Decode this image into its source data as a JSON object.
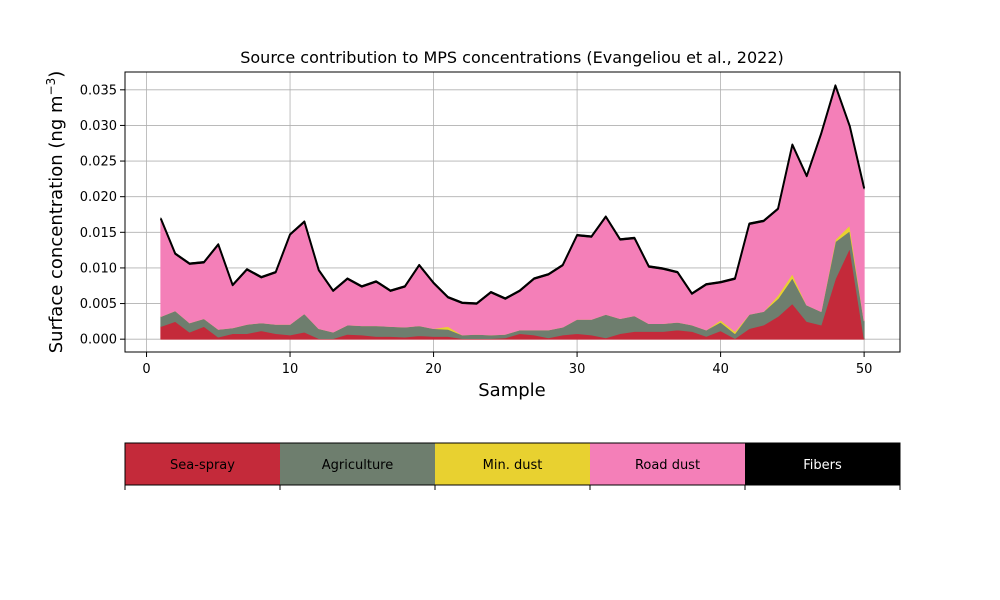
{
  "chart_data": {
    "type": "area",
    "stacked": true,
    "title": "Source contribution to MPS concentrations (Evangeliou et al., 2022)",
    "xlabel": "Sample",
    "ylabel_text": "Surface concentration (ng m",
    "ylabel_exp": "−3",
    "ylabel_close": ")",
    "xlim": [
      -1.5,
      52.5
    ],
    "ylim": [
      -0.0018,
      0.0375
    ],
    "xticks": [
      0,
      10,
      20,
      30,
      40,
      50
    ],
    "xtick_labels": [
      "0",
      "10",
      "20",
      "30",
      "40",
      "50"
    ],
    "yticks": [
      0,
      0.005,
      0.01,
      0.015,
      0.02,
      0.025,
      0.03,
      0.035
    ],
    "ytick_labels": [
      "0.000",
      "0.005",
      "0.010",
      "0.015",
      "0.020",
      "0.025",
      "0.030",
      "0.035"
    ],
    "grid": true,
    "x": [
      1,
      2,
      3,
      4,
      5,
      6,
      7,
      8,
      9,
      10,
      11,
      12,
      13,
      14,
      15,
      16,
      17,
      18,
      19,
      20,
      21,
      22,
      23,
      24,
      25,
      26,
      27,
      28,
      29,
      30,
      31,
      32,
      33,
      34,
      35,
      36,
      37,
      38,
      39,
      40,
      41,
      42,
      43,
      44,
      45,
      46,
      47,
      48,
      49,
      50
    ],
    "series": [
      {
        "name": "Sea-spray",
        "color": "#c42a3a",
        "values": [
          0.0018,
          0.0025,
          0.001,
          0.0018,
          0.0003,
          0.0008,
          0.0008,
          0.0012,
          0.0008,
          0.0006,
          0.001,
          0.0001,
          0.0001,
          0.0007,
          0.0006,
          0.0004,
          0.0004,
          0.0003,
          0.0005,
          0.0004,
          0.0004,
          0.0001,
          0.0001,
          0.0001,
          0.0002,
          0.0008,
          0.0006,
          0.0002,
          0.0006,
          0.0008,
          0.0006,
          0.0002,
          0.0008,
          0.0011,
          0.0011,
          0.0011,
          0.0013,
          0.0011,
          0.0004,
          0.0012,
          0.0001,
          0.0015,
          0.002,
          0.0032,
          0.005,
          0.0025,
          0.002,
          0.0085,
          0.0128,
          0.0001
        ]
      },
      {
        "name": "Agriculture",
        "color": "#6e7e6e",
        "values": [
          0.0014,
          0.0015,
          0.0013,
          0.0011,
          0.0011,
          0.0008,
          0.0013,
          0.0011,
          0.0013,
          0.0015,
          0.0026,
          0.0014,
          0.0009,
          0.0013,
          0.0013,
          0.0015,
          0.0014,
          0.0014,
          0.0014,
          0.0011,
          0.001,
          0.0005,
          0.0006,
          0.0005,
          0.0005,
          0.0005,
          0.0007,
          0.0011,
          0.0011,
          0.002,
          0.0022,
          0.0033,
          0.0021,
          0.0022,
          0.0011,
          0.0011,
          0.0011,
          0.0009,
          0.0009,
          0.0012,
          0.0007,
          0.002,
          0.0019,
          0.0025,
          0.0036,
          0.0023,
          0.0019,
          0.0052,
          0.0024,
          0.0025
        ]
      },
      {
        "name": "Min. dust",
        "color": "#e8d130",
        "values": [
          0,
          0,
          0,
          0,
          0,
          0,
          0,
          0,
          0,
          0,
          0,
          0,
          0,
          0,
          0,
          0,
          0,
          0,
          0,
          0,
          0.0004,
          0,
          0,
          0,
          0,
          0,
          0,
          0,
          0,
          0,
          0,
          0,
          0,
          0,
          0,
          0,
          0,
          0,
          0,
          0.0003,
          0.0003,
          0,
          0,
          0.0005,
          0.0006,
          0,
          0,
          0.0003,
          0.0008,
          0
        ]
      },
      {
        "name": "Road dust",
        "color": "#f47fb8",
        "values": [
          0.0136,
          0.0079,
          0.0082,
          0.0078,
          0.0118,
          0.0059,
          0.0076,
          0.0063,
          0.0072,
          0.0125,
          0.0128,
          0.0081,
          0.0057,
          0.0064,
          0.0054,
          0.0061,
          0.0049,
          0.0056,
          0.0084,
          0.0063,
          0.004,
          0.0044,
          0.0042,
          0.0059,
          0.0049,
          0.0054,
          0.0071,
          0.0077,
          0.0086,
          0.0117,
          0.0115,
          0.0136,
          0.011,
          0.0108,
          0.0079,
          0.0076,
          0.0069,
          0.0043,
          0.0063,
          0.0052,
          0.0073,
          0.0126,
          0.0126,
          0.012,
          0.018,
          0.018,
          0.0248,
          0.0215,
          0.0138,
          0.0185
        ]
      },
      {
        "name": "Fibers",
        "color": "#000000",
        "values": [
          0.0002,
          0.0002,
          0.0002,
          0.0002,
          0.0002,
          0.0002,
          0.0002,
          0.0002,
          0.0002,
          0.0002,
          0.0002,
          0.0002,
          0.0002,
          0.0002,
          0.0002,
          0.0002,
          0.0002,
          0.0002,
          0.0002,
          0.0002,
          0.0002,
          0.0002,
          0.0002,
          0.0002,
          0.0002,
          0.0002,
          0.0002,
          0.0002,
          0.0002,
          0.0002,
          0.0002,
          0.0002,
          0.0002,
          0.0002,
          0.0002,
          0.0002,
          0.0002,
          0.0002,
          0.0002,
          0.0002,
          0.0002,
          0.0002,
          0.0002,
          0.0002,
          0.0002,
          0.0002,
          0.0002,
          0.0002,
          0.0002,
          0.0002
        ]
      }
    ],
    "legend": {
      "placement": "bottom",
      "entries": [
        {
          "label": "Sea-spray",
          "color": "#c42a3a",
          "text_color": "#000000"
        },
        {
          "label": "Agriculture",
          "color": "#6e7e6e",
          "text_color": "#000000"
        },
        {
          "label": "Min. dust",
          "color": "#e8d130",
          "text_color": "#000000"
        },
        {
          "label": "Road dust",
          "color": "#f47fb8",
          "text_color": "#000000"
        },
        {
          "label": "Fibers",
          "color": "#000000",
          "text_color": "#ffffff"
        }
      ]
    }
  }
}
